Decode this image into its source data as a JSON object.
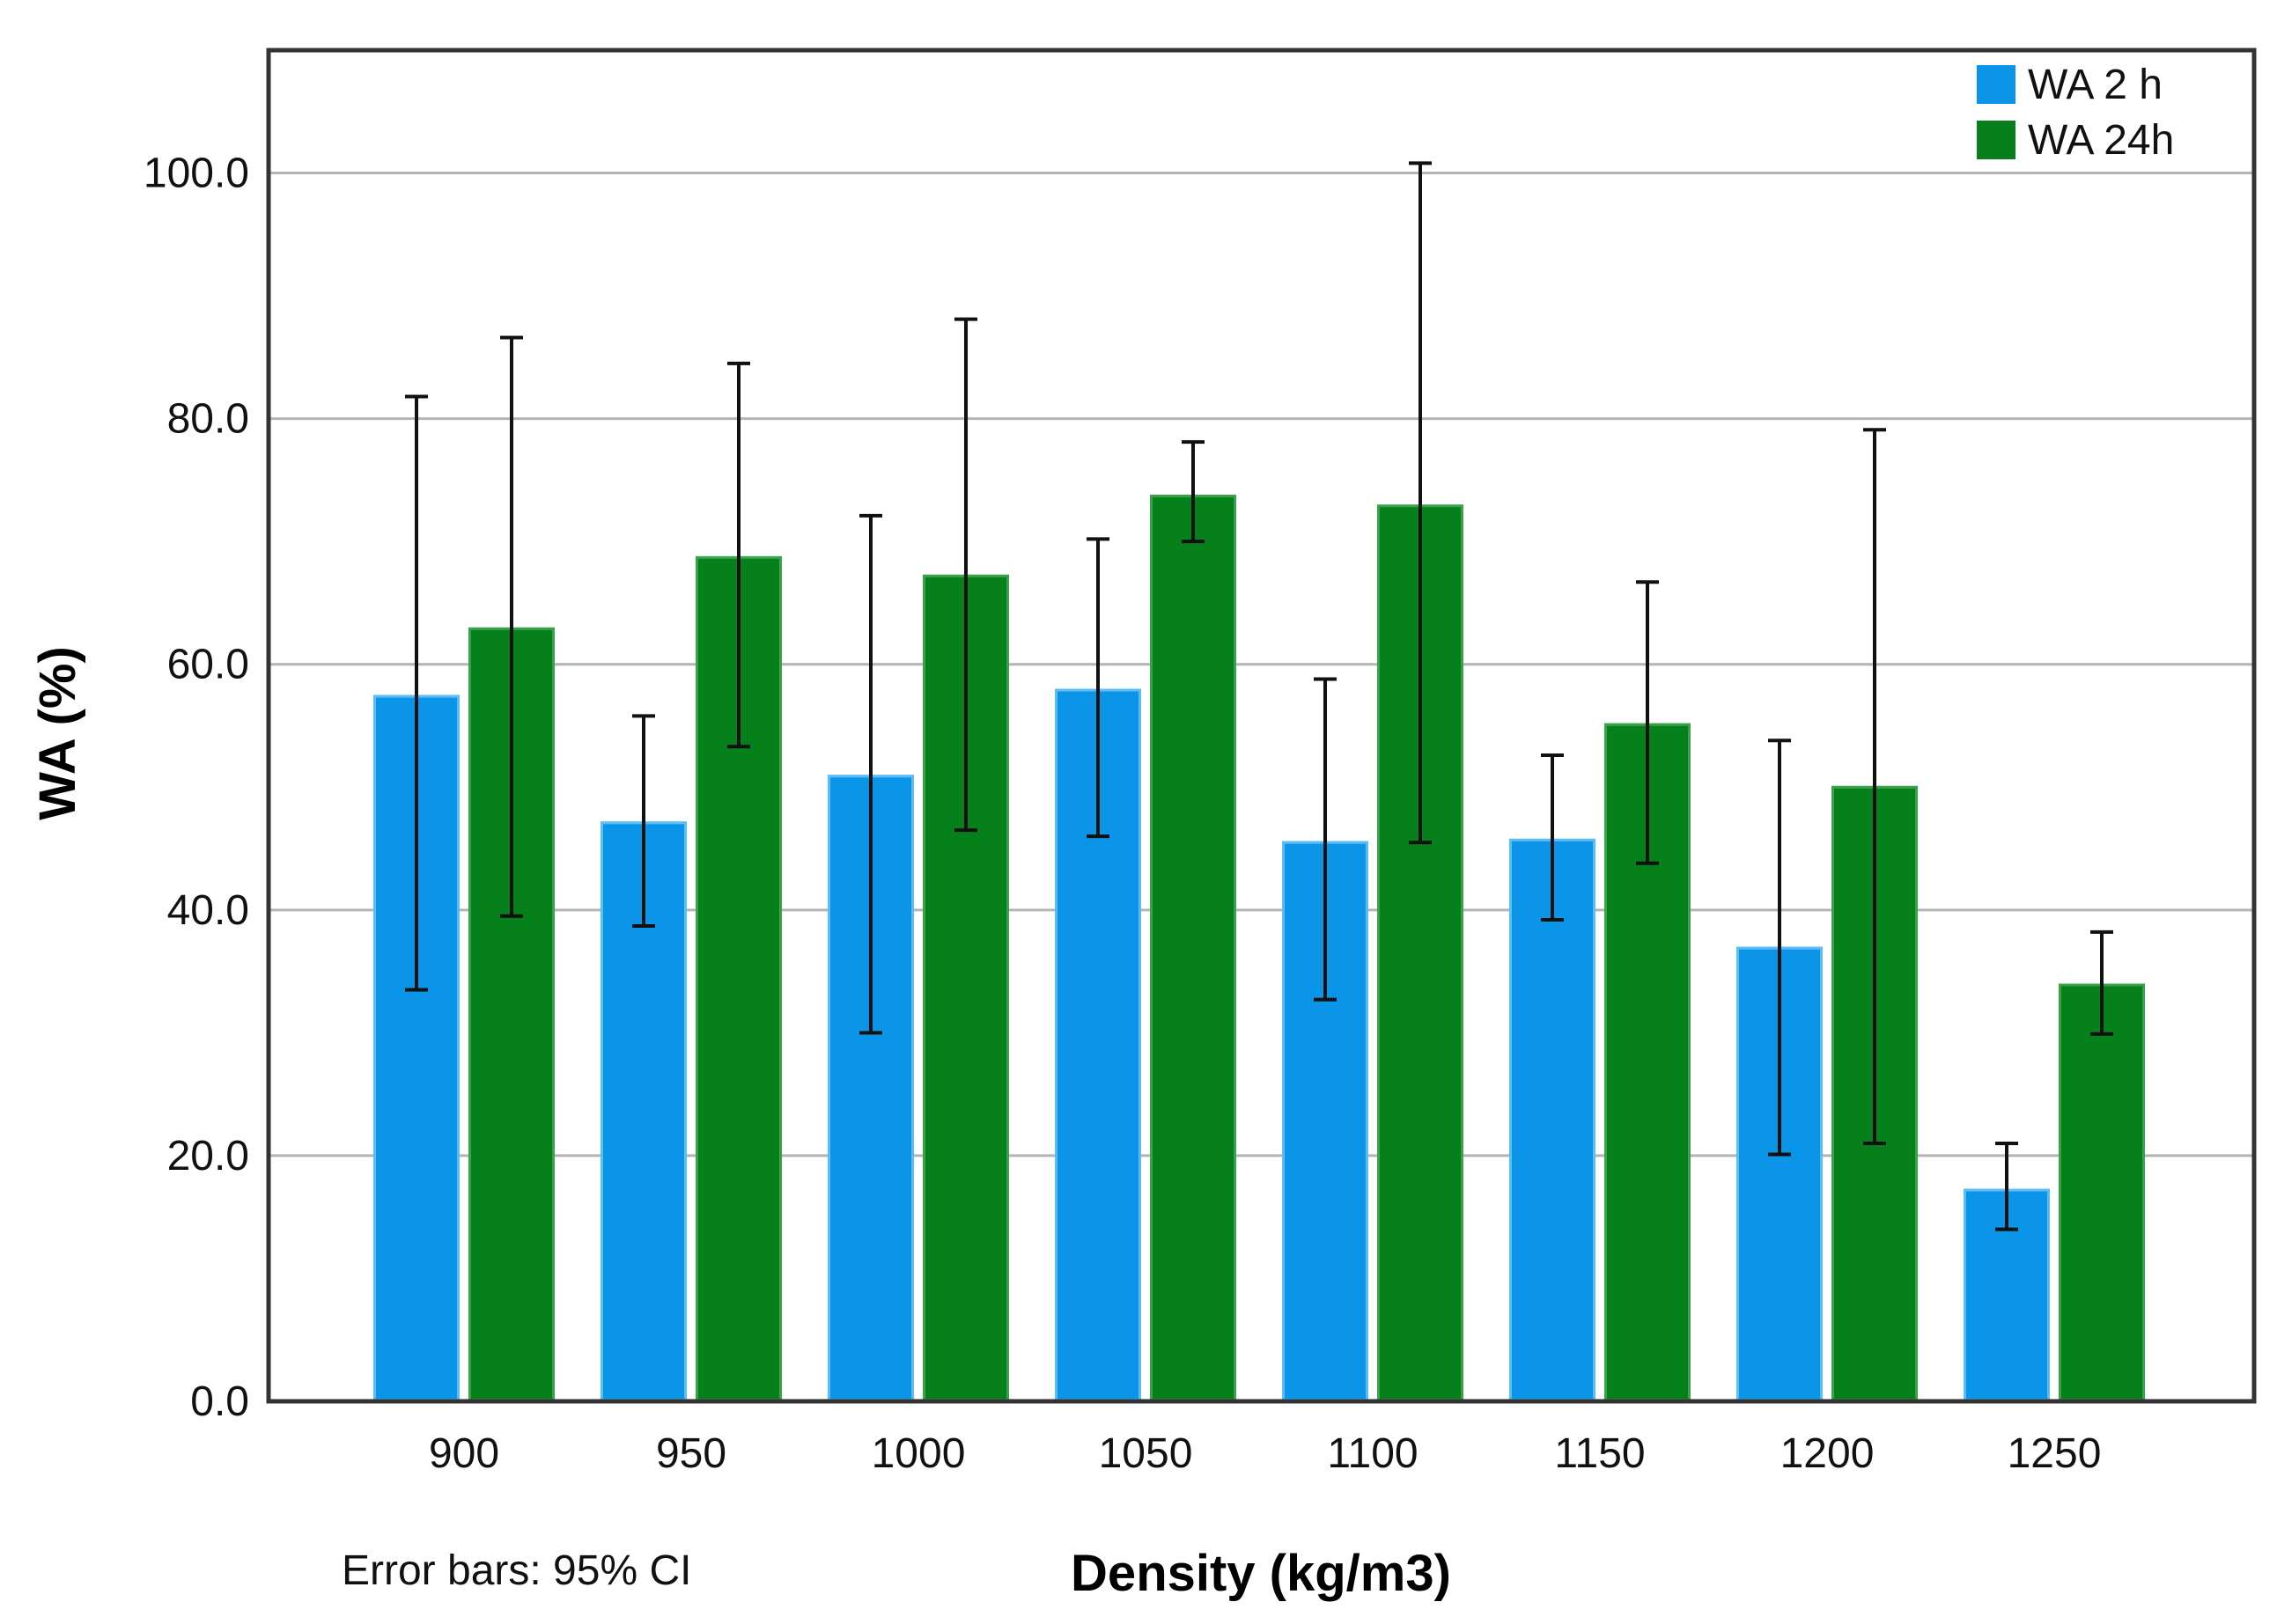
{
  "chart_data": {
    "type": "bar",
    "title": "",
    "xlabel": "Density (kg/m3)",
    "ylabel": "WA (%)",
    "ylim": [
      0,
      110
    ],
    "yticks": [
      0,
      20,
      40,
      60,
      80,
      100
    ],
    "ytick_labels": [
      "0.0",
      "20.0",
      "40.0",
      "60.0",
      "80.0",
      "100.0"
    ],
    "grid": "horizontal",
    "legend_position": "top-right",
    "categories": [
      "900",
      "950",
      "1000",
      "1050",
      "1100",
      "1150",
      "1200",
      "1250"
    ],
    "series": [
      {
        "name": "WA 2 h",
        "color": "#0a95e8",
        "values": [
          57.5,
          47.2,
          51.0,
          58.0,
          45.6,
          45.8,
          37.0,
          17.3
        ],
        "ci_low": [
          33.5,
          38.7,
          30.0,
          46.0,
          32.7,
          39.2,
          20.1,
          14.0
        ],
        "ci_high": [
          81.8,
          55.8,
          72.1,
          70.2,
          58.8,
          52.6,
          53.8,
          21.0
        ]
      },
      {
        "name": "WA 24h",
        "color": "#05801a",
        "values": [
          63.0,
          68.8,
          67.3,
          73.8,
          73.0,
          55.2,
          50.1,
          34.0
        ],
        "ci_low": [
          39.5,
          53.3,
          46.5,
          70.0,
          45.5,
          43.8,
          21.0,
          29.9
        ],
        "ci_high": [
          86.6,
          84.5,
          88.1,
          78.1,
          100.8,
          66.7,
          79.1,
          38.2
        ]
      }
    ],
    "footnote": "Error bars: 95% CI"
  }
}
